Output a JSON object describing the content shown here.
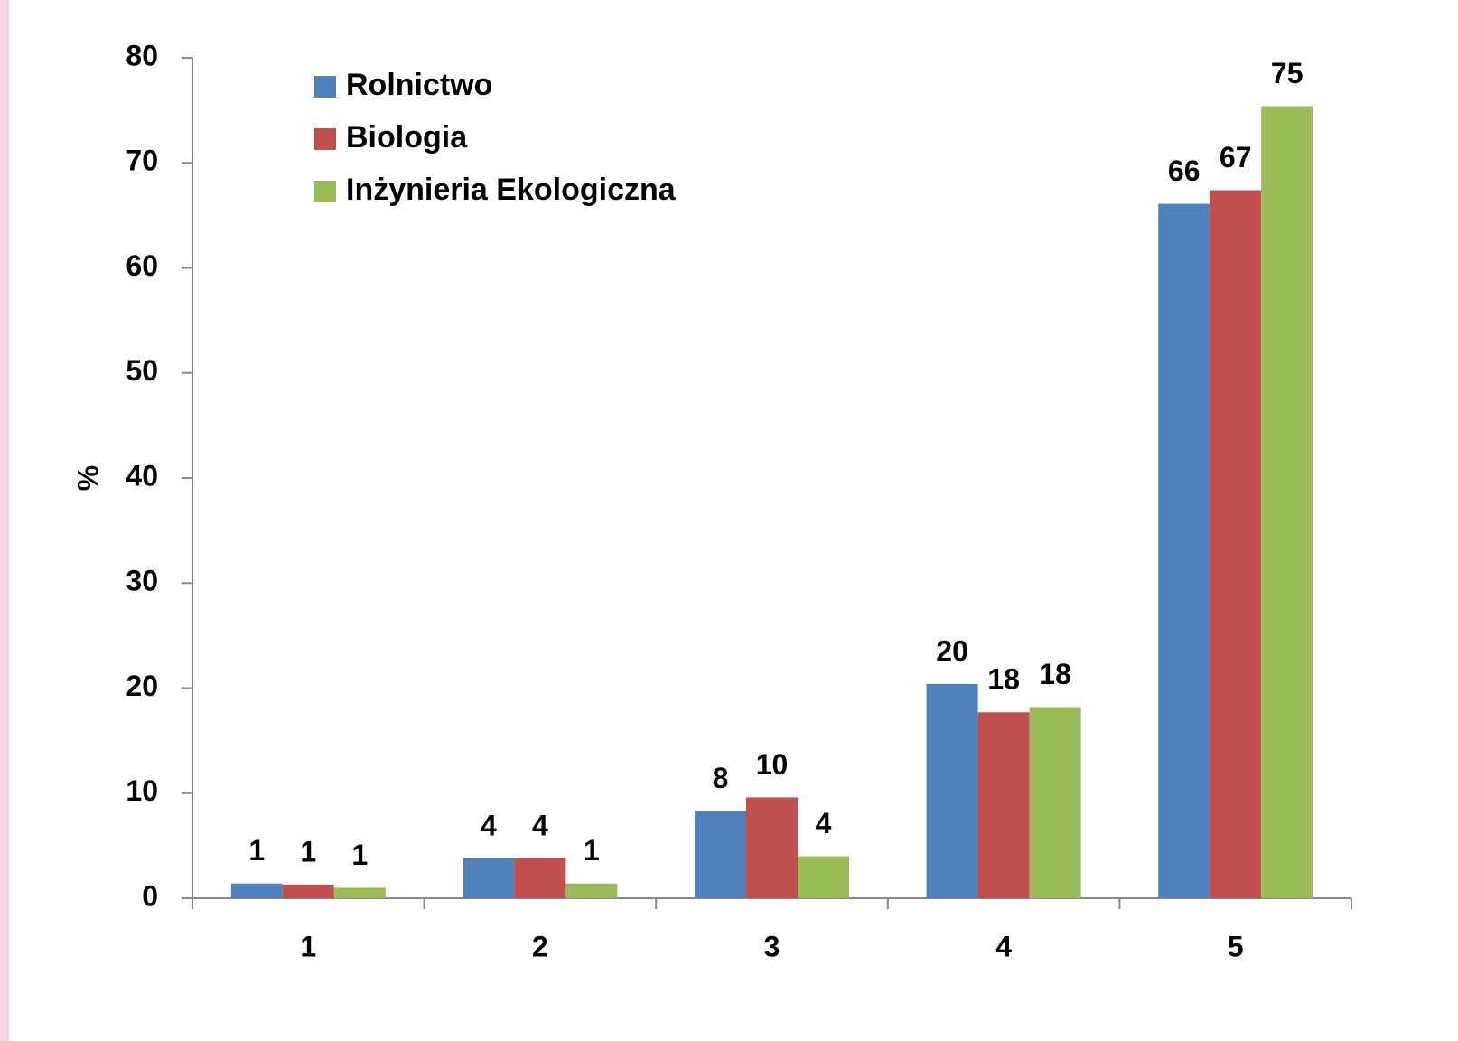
{
  "chart_data": {
    "type": "bar",
    "y_label": "%",
    "categories": [
      "1",
      "2",
      "3",
      "4",
      "5"
    ],
    "series": [
      {
        "name": "Rolnictwo",
        "color": "#4f81bd",
        "values": [
          1.4,
          3.8,
          8.3,
          20.4,
          66.1
        ],
        "value_labels": [
          "1",
          "4",
          "8",
          "20",
          "66"
        ]
      },
      {
        "name": "Biologia",
        "color": "#c0504d",
        "values": [
          1.3,
          3.8,
          9.6,
          17.7,
          67.4
        ],
        "value_labels": [
          "1",
          "4",
          "10",
          "18",
          "67"
        ]
      },
      {
        "name": "Inżynieria Ekologiczna",
        "color": "#9bbb59",
        "values": [
          1.0,
          1.4,
          4.0,
          18.2,
          75.4
        ],
        "value_labels": [
          "1",
          "1",
          "4",
          "18",
          "75"
        ]
      }
    ],
    "ylim": [
      0,
      80
    ],
    "yticks": [
      0,
      10,
      20,
      30,
      40,
      50,
      60,
      70,
      80
    ],
    "legend": "upper left"
  }
}
